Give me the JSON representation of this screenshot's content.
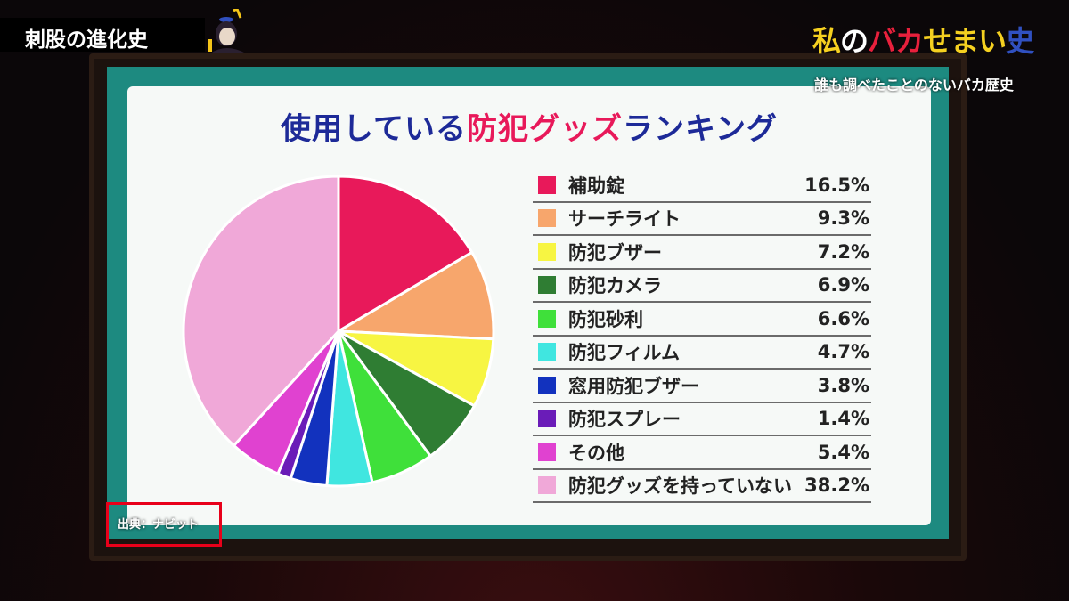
{
  "overlay": {
    "segment_label": "刺股の進化史",
    "show_logo": "私のバカせまい史",
    "show_subtitle": "誰も調べたことのないバカ歴史",
    "source": "出典：ナビット",
    "highlight_color": "#e8001a"
  },
  "chart_data": {
    "type": "pie",
    "title_parts": [
      "使用している",
      "防犯グッズ",
      "ランキング"
    ],
    "title_colors": [
      "#1d2a98",
      "#e8195a",
      "#1d2a98"
    ],
    "start": "top",
    "direction": "clockwise",
    "legend_position": "right",
    "slices": [
      {
        "label": "補助錠",
        "value": 16.5,
        "display": "16.5%",
        "color": "#e8195a"
      },
      {
        "label": "サーチライト",
        "value": 9.3,
        "display": "9.3%",
        "color": "#f7a66c"
      },
      {
        "label": "防犯ブザー",
        "value": 7.2,
        "display": "7.2%",
        "color": "#f7f542"
      },
      {
        "label": "防犯カメラ",
        "value": 6.9,
        "display": "6.9%",
        "color": "#2f7d33"
      },
      {
        "label": "防犯砂利",
        "value": 6.6,
        "display": "6.6%",
        "color": "#3fe03a"
      },
      {
        "label": "防犯フィルム",
        "value": 4.7,
        "display": "4.7%",
        "color": "#40e6e0"
      },
      {
        "label": "窓用防犯ブザー",
        "value": 3.8,
        "display": "3.8%",
        "color": "#1232be"
      },
      {
        "label": "防犯スプレー",
        "value": 1.4,
        "display": "1.4%",
        "color": "#6a1cb8"
      },
      {
        "label": "その他",
        "value": 5.4,
        "display": "5.4%",
        "color": "#e042d0"
      },
      {
        "label": "防犯グッズを持っていない",
        "value": 38.2,
        "display": "38.2%",
        "color": "#f0a8d8"
      }
    ]
  }
}
